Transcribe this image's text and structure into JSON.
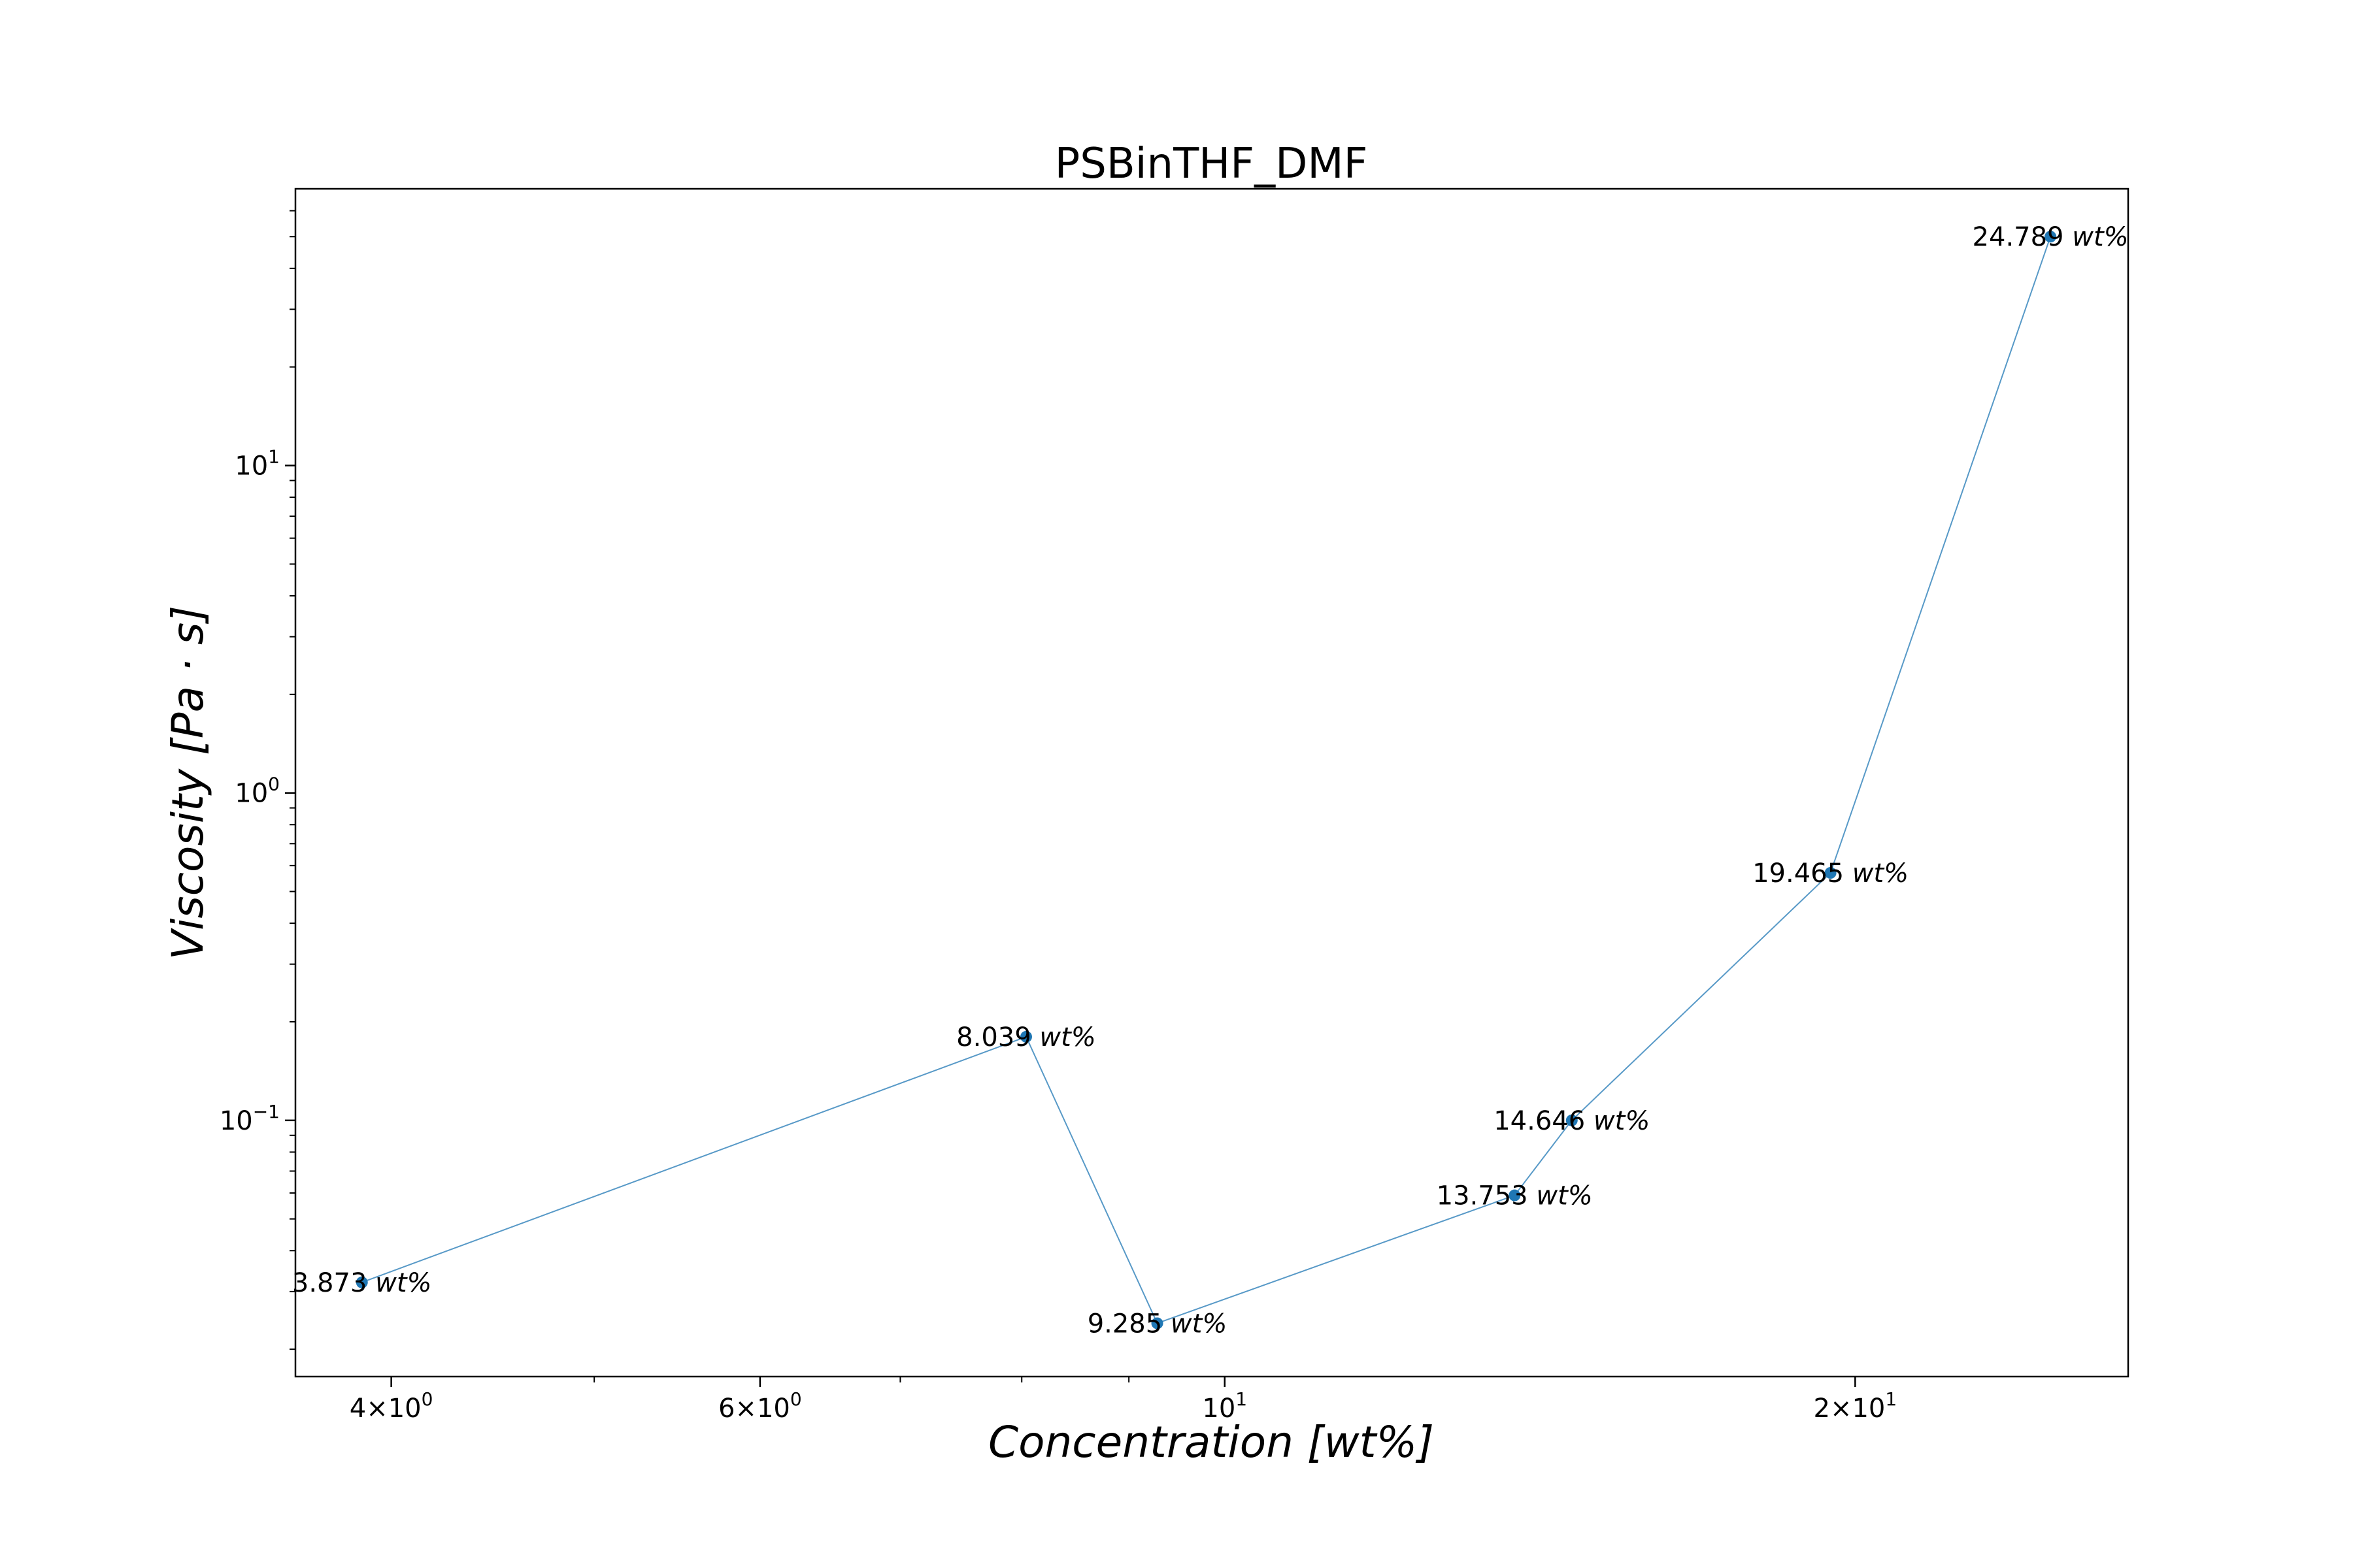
{
  "chart_data": {
    "type": "line",
    "title": "PSBinTHF_DMF",
    "xlabel": "Concentration    [wt%]",
    "ylabel": "Viscosity    [Pa · s]",
    "xscale": "log",
    "yscale": "log",
    "xlim": [
      3.6,
      27.0
    ],
    "ylim": [
      0.0165,
      70
    ],
    "grid": false,
    "x_ticks": [
      {
        "value": 4,
        "mantissa": "4",
        "exponent": "0"
      },
      {
        "value": 6,
        "mantissa": "6",
        "exponent": "0"
      },
      {
        "value": 10,
        "mantissa": "",
        "exponent": "1"
      },
      {
        "value": 20,
        "mantissa": "2",
        "exponent": "1"
      }
    ],
    "y_ticks": [
      {
        "value": 0.1,
        "exponent": "−1"
      },
      {
        "value": 1,
        "exponent": "0"
      },
      {
        "value": 10,
        "exponent": "1"
      }
    ],
    "series": [
      {
        "color": "#1f77b4",
        "x": [
          3.873,
          8.039,
          9.285,
          13.753,
          14.646,
          19.465,
          24.789
        ],
        "y": [
          0.032,
          0.18,
          0.024,
          0.059,
          0.1,
          0.57,
          50
        ],
        "labels": [
          "3.873",
          "8.039",
          "9.285",
          "13.753",
          "14.646",
          "19.465",
          "24.789"
        ],
        "label_unit": "wt%"
      }
    ]
  }
}
